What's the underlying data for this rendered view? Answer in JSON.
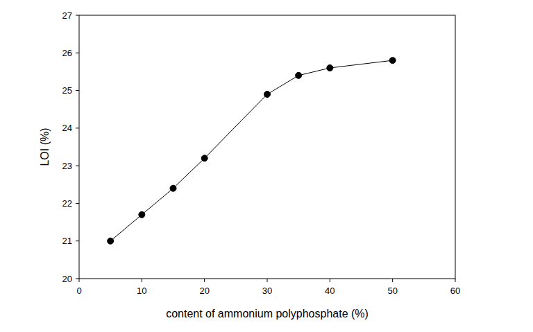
{
  "chart_data": {
    "type": "line",
    "x_label": "content of ammonium polyphosphate (%)",
    "y_label": "LOI (%)",
    "x": [
      5,
      10,
      15,
      20,
      30,
      35,
      40,
      50
    ],
    "values": [
      21.0,
      21.7,
      22.4,
      23.2,
      24.9,
      25.4,
      25.6,
      25.8
    ],
    "color": "#000000",
    "marker": "circle",
    "grid": false,
    "xlim": [
      0,
      60
    ],
    "xticks": [
      0,
      10,
      20,
      30,
      40,
      50,
      60
    ],
    "ylim": [
      20,
      27
    ],
    "yticks": [
      20,
      21,
      22,
      23,
      24,
      25,
      26,
      27
    ]
  }
}
